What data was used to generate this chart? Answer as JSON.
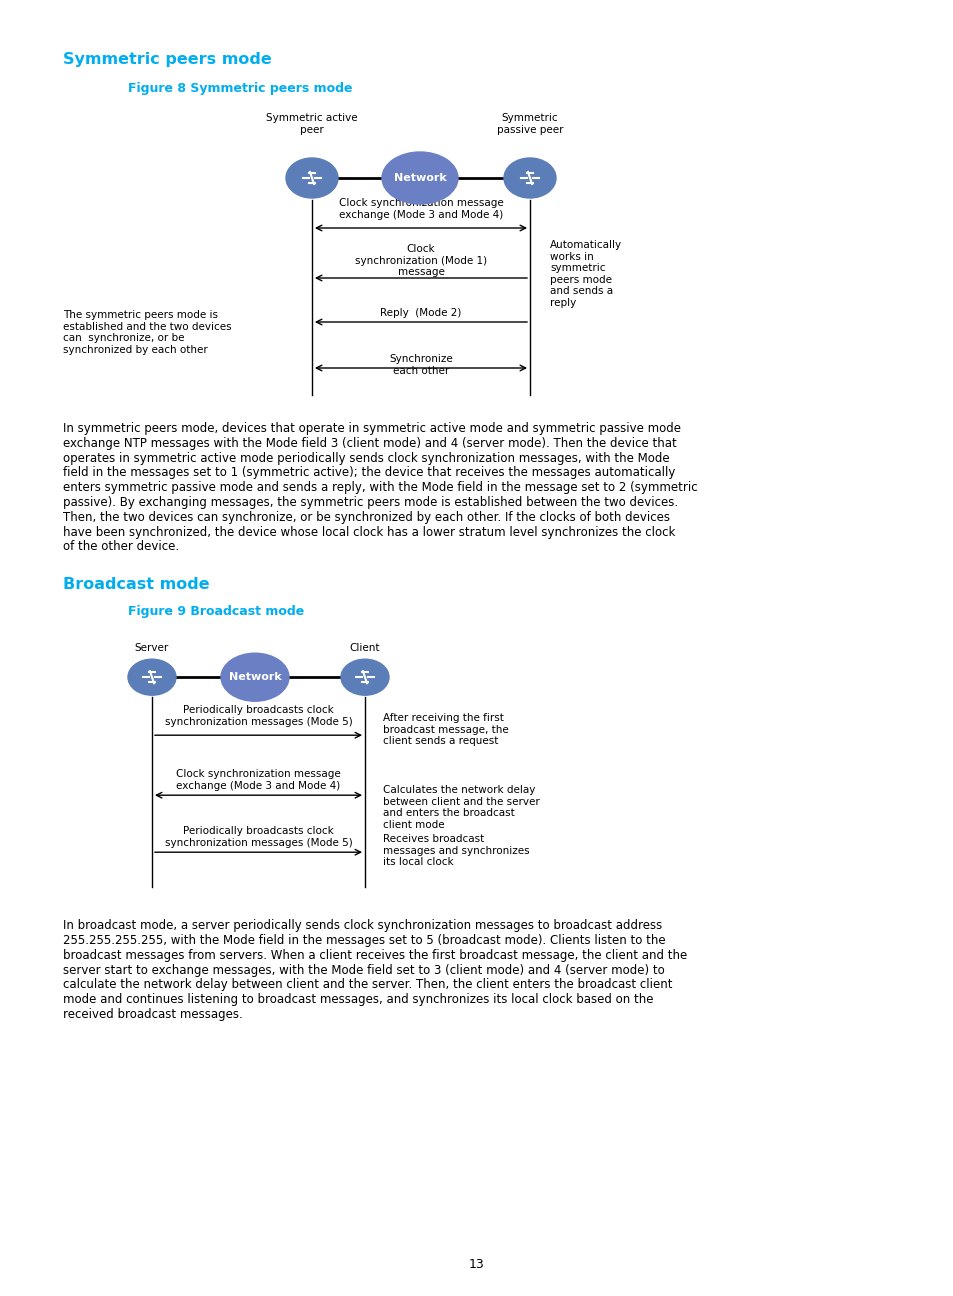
{
  "bg_color": "#ffffff",
  "heading_color": "#00AEEF",
  "figure_title_color": "#00AEEF",
  "node_device_fill": "#5B7DB8",
  "node_network_fill": "#6B7FC4",
  "page_number": "13",
  "section1_heading": "Symmetric peers mode",
  "fig8_title": "Figure 8 Symmetric peers mode",
  "sym_label_active": "Symmetric active\npeer",
  "sym_label_passive": "Symmetric\npassive peer",
  "sym_network_label": "Network",
  "sym_arrow1_text": "Clock synchronization message\nexchange (Mode 3 and Mode 4)",
  "sym_arrow2_text": "Clock\nsynchronization (Mode 1)\nmessage",
  "sym_arrow3_text": "Reply  (Mode 2)",
  "sym_arrow4_text": "Synchronize\neach other",
  "sym_left_note": "The symmetric peers mode is\nestablished and the two devices\ncan  synchronize, or be\nsynchronized by each other",
  "sym_right_note": "Automatically\nworks in\nsymmetric\npeers mode\nand sends a\nreply",
  "para1_lines": [
    "In symmetric peers mode, devices that operate in symmetric active mode and symmetric passive mode",
    "exchange NTP messages with the Mode field 3 (client mode) and 4 (server mode). Then the device that",
    "operates in symmetric active mode periodically sends clock synchronization messages, with the Mode",
    "field in the messages set to 1 (symmetric active); the device that receives the messages automatically",
    "enters symmetric passive mode and sends a reply, with the Mode field in the message set to 2 (symmetric",
    "passive). By exchanging messages, the symmetric peers mode is established between the two devices.",
    "Then, the two devices can synchronize, or be synchronized by each other. If the clocks of both devices",
    "have been synchronized, the device whose local clock has a lower stratum level synchronizes the clock",
    "of the other device."
  ],
  "section2_heading": "Broadcast mode",
  "fig9_title": "Figure 9 Broadcast mode",
  "bc_server_label": "Server",
  "bc_client_label": "Client",
  "bc_network_label": "Network",
  "bc_arrow1_text": "Periodically broadcasts clock\nsynchronization messages (Mode 5)",
  "bc_arrow2_text": "Clock synchronization message\nexchange (Mode 3 and Mode 4)",
  "bc_arrow3_text": "Periodically broadcasts clock\nsynchronization messages (Mode 5)",
  "bc_right1_text": "After receiving the first\nbroadcast message, the\nclient sends a request",
  "bc_right2_text": "Calculates the network delay\nbetween client and the server\nand enters the broadcast\nclient mode",
  "bc_right3_text": "Receives broadcast\nmessages and synchronizes\nits local clock",
  "para2_lines": [
    "In broadcast mode, a server periodically sends clock synchronization messages to broadcast address",
    "255.255.255.255, with the Mode field in the messages set to 5 (broadcast mode). Clients listen to the",
    "broadcast messages from servers. When a client receives the first broadcast message, the client and the",
    "server start to exchange messages, with the Mode field set to 3 (client mode) and 4 (server mode) to",
    "calculate the network delay between client and the server. Then, the client enters the broadcast client",
    "mode and continues listening to broadcast messages, and synchronizes its local clock based on the",
    "received broadcast messages."
  ]
}
